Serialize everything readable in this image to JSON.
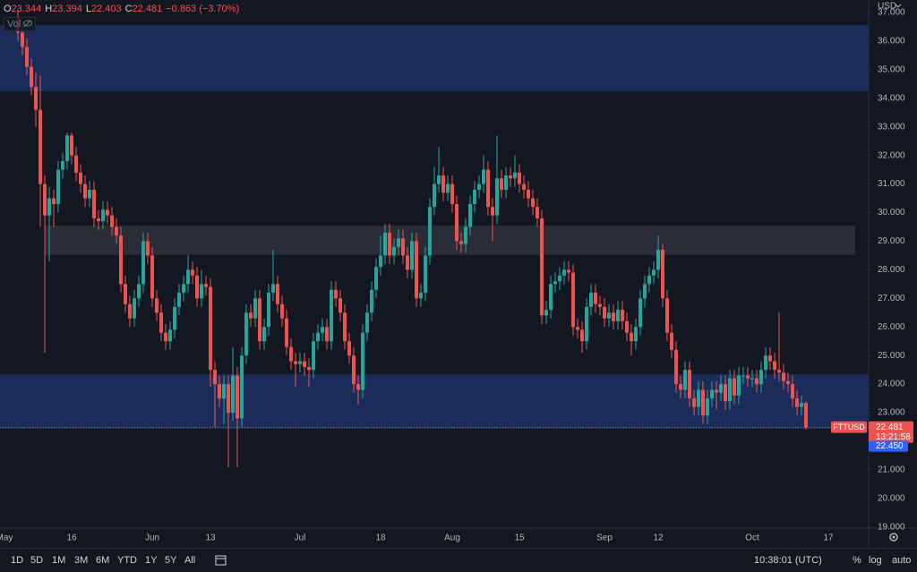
{
  "chart_data": {
    "type": "candlestick",
    "legend": [
      {
        "key": "O",
        "value": "23.344"
      },
      {
        "key": "H",
        "value": "23.394"
      },
      {
        "key": "L",
        "value": "22.403"
      },
      {
        "key": "C",
        "value": "22.481"
      }
    ],
    "change": "−0.863 (−3.70%)",
    "volume_label": "Vol",
    "currency": "USD",
    "ylim": [
      18.96,
      37.44
    ],
    "yticks": [
      {
        "value": 19,
        "label": "19.000"
      },
      {
        "value": 20,
        "label": "20.000"
      },
      {
        "value": 21,
        "label": "21.000"
      },
      {
        "value": 22,
        "label": "22.000"
      },
      {
        "value": 23,
        "label": "23.000"
      },
      {
        "value": 24,
        "label": "24.000"
      },
      {
        "value": 25,
        "label": "25.000"
      },
      {
        "value": 26,
        "label": "26.000"
      },
      {
        "value": 27,
        "label": "27.000"
      },
      {
        "value": 28,
        "label": "28.000"
      },
      {
        "value": 29,
        "label": "29.000"
      },
      {
        "value": 30,
        "label": "30.000"
      },
      {
        "value": 31,
        "label": "31.000"
      },
      {
        "value": 32,
        "label": "32.000"
      },
      {
        "value": 33,
        "label": "33.000"
      },
      {
        "value": 34,
        "label": "34.000"
      },
      {
        "value": 35,
        "label": "35.000"
      },
      {
        "value": 36,
        "label": "36.000"
      },
      {
        "value": 37,
        "label": "37.000"
      }
    ],
    "xlim": [
      -4,
      190
    ],
    "xticks": [
      {
        "value": -3,
        "label": "May"
      },
      {
        "value": 12,
        "label": "16"
      },
      {
        "value": 30,
        "label": "Jun"
      },
      {
        "value": 43,
        "label": "13"
      },
      {
        "value": 63,
        "label": "Jul"
      },
      {
        "value": 81,
        "label": "18"
      },
      {
        "value": 97,
        "label": "Aug"
      },
      {
        "value": 112,
        "label": "15"
      },
      {
        "value": 131,
        "label": "Sep"
      },
      {
        "value": 143,
        "label": "12"
      },
      {
        "value": 164,
        "label": "Oct"
      },
      {
        "value": 181,
        "label": "17"
      }
    ],
    "grid": false,
    "up_color": "#26a69a",
    "down_color": "#ef5350",
    "zones": [
      {
        "low": 34.25,
        "high": 36.56,
        "color": "#1c2c5a"
      },
      {
        "low": 28.52,
        "high": 29.55,
        "color": "#2a2d37",
        "xrange": [
          6,
          187
        ]
      },
      {
        "low": 22.44,
        "high": 24.35,
        "color": "#1c2c5a"
      }
    ],
    "open": [
      36.8,
      36.3,
      35.8,
      35.1,
      34.4,
      33.6,
      31.0,
      29.9,
      30.5,
      30.3,
      31.5,
      31.8,
      32.7,
      32.0,
      31.4,
      31.0,
      30.5,
      30.8,
      29.8,
      29.7,
      30.1,
      29.9,
      29.5,
      29.2,
      27.5,
      26.8,
      26.3,
      27.0,
      27.5,
      29.0,
      28.5,
      27.0,
      26.5,
      25.8,
      25.5,
      25.9,
      26.7,
      27.2,
      27.5,
      28.0,
      27.8,
      27.0,
      27.5,
      27.4,
      24.5,
      24.0,
      23.5,
      24.0,
      23.0,
      24.3,
      22.8,
      25.0,
      26.5,
      26.3,
      27.0,
      25.5,
      26.0,
      27.2,
      27.5,
      26.8,
      26.3,
      25.3,
      24.8,
      24.7,
      24.8,
      24.6,
      24.5,
      25.5,
      25.8,
      26.0,
      25.5,
      27.3,
      27.0,
      26.5,
      25.5,
      25.0,
      24.0,
      23.8,
      25.8,
      26.5,
      27.3,
      28.1,
      28.5,
      29.3,
      28.5,
      28.8,
      29.1,
      28.5,
      28.0,
      29.0,
      27.0,
      27.2,
      28.5,
      30.2,
      31.0,
      31.3,
      30.7,
      31.0,
      30.3,
      29.0,
      28.9,
      29.5,
      30.3,
      30.8,
      31.0,
      31.5,
      30.2,
      29.9,
      31.2,
      30.8,
      31.3,
      31.2,
      31.4,
      31.0,
      30.8,
      30.5,
      30.2,
      29.8,
      26.4,
      26.6,
      27.5,
      27.6,
      27.8,
      28.0,
      27.9,
      26.0,
      25.9,
      25.5,
      26.7,
      27.2,
      26.8,
      26.7,
      26.3,
      26.5,
      26.2,
      26.6,
      26.2,
      25.8,
      25.5,
      26.0,
      27.0,
      27.5,
      27.8,
      28.0,
      28.7,
      27.0,
      25.8,
      25.2,
      24.0,
      23.8,
      24.5,
      23.5,
      23.2,
      23.8,
      22.9,
      23.5,
      23.8,
      23.7,
      24.0,
      23.4,
      24.2,
      23.6,
      24.3,
      24.3,
      24.2,
      24.2,
      24.0,
      24.5,
      25.0,
      24.8,
      24.5,
      24.4,
      24.1,
      24.0,
      23.5,
      23.2,
      23.344
    ],
    "high": [
      37.1,
      36.6,
      36.1,
      35.4,
      34.9,
      34.8,
      31.3,
      30.9,
      30.8,
      31.8,
      32.1,
      32.8,
      32.8,
      32.3,
      31.7,
      31.3,
      31.1,
      31.1,
      30.1,
      30.4,
      30.4,
      30.2,
      29.8,
      29.5,
      27.8,
      27.1,
      27.3,
      27.8,
      29.3,
      29.3,
      28.8,
      27.3,
      26.8,
      26.1,
      26.2,
      27.0,
      27.5,
      27.8,
      28.5,
      28.3,
      28.1,
      28.0,
      27.8,
      27.7,
      24.8,
      24.3,
      24.3,
      24.3,
      25.3,
      24.6,
      25.3,
      26.8,
      26.8,
      27.3,
      27.3,
      26.3,
      27.5,
      28.7,
      27.8,
      27.1,
      26.6,
      25.6,
      25.1,
      25.1,
      25.1,
      24.9,
      25.8,
      26.1,
      26.3,
      26.3,
      27.6,
      27.6,
      27.3,
      26.8,
      25.8,
      25.3,
      24.3,
      26.1,
      26.8,
      27.6,
      28.4,
      29.2,
      29.6,
      29.6,
      29.1,
      29.4,
      29.4,
      28.8,
      29.3,
      29.3,
      27.5,
      28.8,
      30.5,
      31.6,
      32.3,
      31.6,
      31.3,
      31.3,
      30.6,
      29.3,
      29.8,
      30.6,
      31.1,
      31.3,
      32.0,
      31.8,
      30.5,
      32.7,
      31.5,
      31.6,
      31.6,
      32.0,
      31.7,
      31.3,
      31.1,
      30.8,
      30.5,
      30.1,
      26.9,
      27.8,
      27.9,
      28.1,
      28.3,
      28.3,
      28.2,
      26.3,
      26.2,
      27.0,
      27.5,
      27.5,
      27.1,
      27.0,
      26.8,
      26.8,
      26.9,
      26.9,
      26.5,
      26.1,
      26.3,
      27.3,
      27.8,
      28.1,
      28.3,
      29.2,
      28.9,
      27.3,
      26.1,
      25.5,
      24.3,
      24.8,
      24.8,
      23.8,
      24.1,
      24.1,
      23.8,
      24.1,
      24.1,
      24.3,
      24.3,
      24.5,
      24.5,
      24.6,
      24.6,
      24.6,
      24.5,
      24.5,
      24.8,
      25.3,
      25.3,
      25.1,
      26.5,
      24.7,
      24.4,
      24.3,
      23.8,
      23.6,
      23.394
    ],
    "low": [
      36.0,
      35.5,
      34.8,
      34.1,
      33.0,
      29.5,
      25.1,
      28.3,
      29.5,
      30.0,
      31.2,
      31.5,
      31.7,
      31.1,
      30.7,
      30.2,
      30.2,
      29.5,
      29.4,
      29.4,
      29.6,
      29.2,
      28.9,
      27.2,
      26.5,
      26.0,
      26.0,
      26.7,
      27.2,
      28.2,
      26.7,
      26.2,
      25.5,
      25.2,
      25.2,
      25.6,
      26.4,
      26.9,
      27.2,
      27.5,
      26.7,
      26.7,
      27.1,
      23.9,
      22.5,
      23.2,
      22.6,
      21.1,
      22.7,
      21.1,
      22.5,
      24.7,
      26.0,
      26.0,
      25.2,
      25.2,
      25.7,
      26.9,
      26.5,
      26.0,
      25.0,
      24.5,
      23.9,
      24.4,
      24.3,
      23.9,
      24.2,
      25.2,
      25.5,
      25.2,
      25.2,
      26.7,
      26.2,
      25.2,
      24.7,
      23.7,
      23.3,
      23.5,
      25.5,
      26.2,
      27.0,
      27.8,
      28.2,
      28.2,
      28.2,
      28.5,
      28.2,
      27.7,
      27.7,
      26.7,
      26.7,
      26.9,
      28.2,
      29.9,
      30.7,
      30.4,
      30.4,
      30.0,
      28.7,
      28.6,
      28.6,
      29.2,
      30.0,
      30.5,
      30.7,
      29.9,
      29.0,
      29.6,
      30.5,
      30.5,
      30.9,
      30.9,
      30.7,
      30.5,
      30.2,
      29.9,
      29.5,
      26.1,
      26.1,
      26.3,
      27.2,
      27.3,
      27.5,
      27.6,
      25.7,
      25.6,
      25.1,
      25.2,
      26.4,
      26.5,
      26.4,
      26.0,
      26.0,
      25.9,
      25.9,
      25.9,
      25.5,
      25.0,
      25.2,
      25.7,
      26.7,
      27.2,
      27.5,
      27.7,
      26.7,
      25.5,
      24.9,
      23.7,
      23.5,
      23.5,
      23.2,
      22.9,
      22.9,
      22.6,
      22.6,
      23.2,
      23.1,
      23.4,
      23.1,
      23.1,
      23.3,
      23.3,
      24.0,
      23.9,
      23.9,
      23.7,
      23.7,
      24.2,
      24.5,
      24.2,
      24.1,
      23.8,
      23.7,
      23.2,
      22.9,
      22.9,
      22.403
    ],
    "close": [
      36.3,
      35.8,
      35.1,
      34.4,
      33.6,
      31.0,
      29.9,
      30.5,
      30.3,
      31.5,
      31.8,
      32.7,
      32.0,
      31.4,
      31.0,
      30.5,
      30.8,
      29.8,
      29.7,
      30.1,
      29.9,
      29.5,
      29.2,
      27.5,
      26.8,
      26.3,
      27.0,
      27.5,
      29.0,
      28.5,
      27.0,
      26.5,
      25.8,
      25.5,
      25.9,
      26.7,
      27.2,
      27.5,
      28.0,
      27.8,
      27.0,
      27.5,
      27.4,
      24.5,
      24.0,
      23.5,
      24.0,
      23.0,
      24.3,
      22.8,
      25.0,
      26.5,
      26.3,
      27.0,
      25.5,
      26.0,
      27.2,
      27.5,
      26.8,
      26.3,
      25.3,
      24.8,
      24.7,
      24.8,
      24.6,
      24.5,
      25.5,
      25.8,
      26.0,
      25.5,
      27.3,
      27.0,
      26.5,
      25.5,
      25.0,
      24.0,
      23.8,
      25.8,
      26.5,
      27.3,
      28.1,
      28.5,
      29.3,
      28.5,
      28.8,
      29.1,
      28.5,
      28.0,
      29.0,
      27.0,
      27.2,
      28.5,
      30.2,
      31.0,
      31.3,
      30.7,
      31.0,
      30.3,
      29.0,
      28.9,
      29.5,
      30.3,
      30.8,
      31.0,
      31.5,
      30.2,
      29.9,
      31.2,
      30.8,
      31.3,
      31.2,
      31.4,
      31.0,
      30.8,
      30.5,
      30.2,
      29.8,
      26.4,
      26.6,
      27.5,
      27.6,
      27.8,
      28.0,
      27.9,
      26.0,
      25.9,
      25.5,
      26.7,
      27.2,
      26.8,
      26.7,
      26.3,
      26.5,
      26.2,
      26.6,
      26.2,
      25.8,
      25.5,
      26.0,
      27.0,
      27.5,
      27.8,
      28.0,
      28.7,
      27.0,
      25.8,
      25.2,
      24.0,
      23.8,
      24.5,
      23.5,
      23.2,
      23.8,
      22.9,
      23.5,
      23.8,
      23.7,
      24.0,
      23.4,
      24.2,
      23.6,
      24.3,
      24.3,
      24.2,
      24.2,
      24.0,
      24.5,
      25.0,
      24.8,
      24.5,
      24.4,
      24.1,
      24.0,
      23.5,
      23.2,
      23.344,
      22.481
    ],
    "symbol": "FTTUSD",
    "last_label": "22.481",
    "countdown": "13:21:58",
    "bid": 22.45,
    "bid_label": "22.450",
    "timeframes": [
      "1D",
      "5D",
      "1M",
      "3M",
      "6M",
      "YTD",
      "1Y",
      "5Y",
      "All"
    ],
    "clock": "10:38:01 (UTC)",
    "scale_options": [
      "%",
      "log",
      "auto"
    ]
  }
}
